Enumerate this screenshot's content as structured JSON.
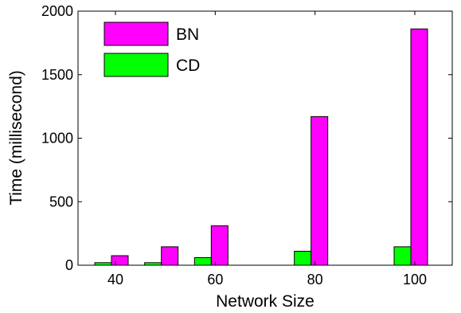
{
  "chart_data": {
    "type": "bar",
    "title": "",
    "xlabel": "Network Size",
    "ylabel": "Time (millisecond)",
    "categories": [
      "40",
      "50",
      "60",
      "80",
      "100"
    ],
    "x_tick_labels": [
      "40",
      "60",
      "80",
      "100"
    ],
    "x_tick_values": [
      40,
      60,
      80,
      100
    ],
    "ylim": [
      0,
      2000
    ],
    "y_ticks": [
      0,
      500,
      1000,
      1500,
      2000
    ],
    "grid": false,
    "legend_position": "top-left",
    "series": [
      {
        "name": "CD",
        "color": "#00ff00",
        "values": [
          20,
          20,
          60,
          110,
          145
        ]
      },
      {
        "name": "BN",
        "color": "#ff00ff",
        "values": [
          75,
          145,
          310,
          1170,
          1860
        ]
      }
    ],
    "x_positions": [
      40,
      50,
      60,
      80,
      100
    ]
  }
}
